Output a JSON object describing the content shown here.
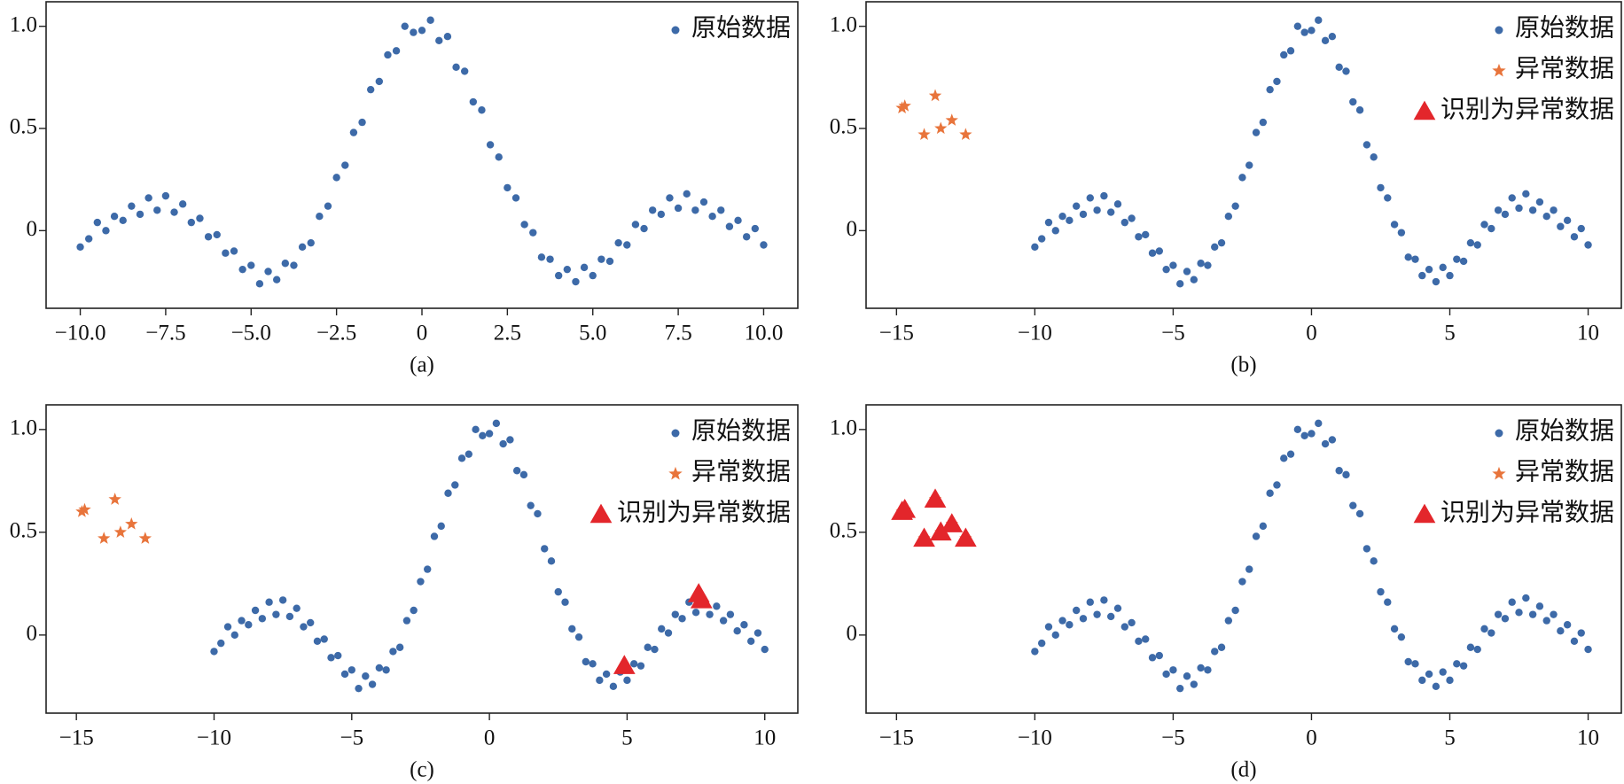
{
  "chart_data": [
    {
      "type": "scatter",
      "caption": "(a)",
      "legend": "upper right",
      "xlim": [
        -11,
        11
      ],
      "ylim": [
        -0.38,
        1.12
      ],
      "xticks": [
        {
          "value": -10,
          "label": "−10.0"
        },
        {
          "value": -7.5,
          "label": "−7.5"
        },
        {
          "value": -5,
          "label": "−5.0"
        },
        {
          "value": -2.5,
          "label": "−2.5"
        },
        0,
        2.5,
        {
          "value": 5,
          "label": "5.0"
        },
        7.5,
        {
          "value": 10,
          "label": "10.0"
        }
      ],
      "yticks": [
        0,
        0.5,
        {
          "value": 1,
          "label": "1.0"
        }
      ],
      "series": [
        {
          "name": "原始数据",
          "color": "#3d6aa8",
          "marker": "circle",
          "x": [
            -10,
            -9.75,
            -9.5,
            -9.25,
            -9,
            -8.75,
            -8.5,
            -8.25,
            -8,
            -7.75,
            -7.5,
            -7.25,
            -7,
            -6.75,
            -6.5,
            -6.25,
            -6,
            -5.75,
            -5.5,
            -5.25,
            -5,
            -4.75,
            -4.5,
            -4.25,
            -4,
            -3.75,
            -3.5,
            -3.25,
            -3,
            -2.75,
            -2.5,
            -2.25,
            -2,
            -1.75,
            -1.5,
            -1.25,
            -1,
            -0.75,
            -0.5,
            -0.25,
            0,
            0.25,
            0.5,
            0.75,
            1,
            1.25,
            1.5,
            1.75,
            2,
            2.25,
            2.5,
            2.75,
            3,
            3.25,
            3.5,
            3.75,
            4,
            4.25,
            4.5,
            4.75,
            5,
            5.25,
            5.5,
            5.75,
            6,
            6.25,
            6.5,
            6.75,
            7,
            7.25,
            7.5,
            7.75,
            8,
            8.25,
            8.5,
            8.75,
            9,
            9.25,
            9.5,
            9.75,
            10
          ],
          "values": [
            -0.08,
            -0.04,
            0.04,
            0,
            0.07,
            0.05,
            0.12,
            0.08,
            0.16,
            0.1,
            0.17,
            0.09,
            0.13,
            0.04,
            0.06,
            -0.03,
            -0.02,
            -0.11,
            -0.1,
            -0.19,
            -0.17,
            -0.26,
            -0.2,
            -0.24,
            -0.16,
            -0.17,
            -0.08,
            -0.06,
            0.07,
            0.12,
            0.26,
            0.32,
            0.48,
            0.53,
            0.69,
            0.73,
            0.86,
            0.88,
            1,
            0.97,
            0.98,
            1.03,
            0.93,
            0.95,
            0.8,
            0.78,
            0.63,
            0.59,
            0.42,
            0.36,
            0.21,
            0.16,
            0.03,
            -0.01,
            -0.13,
            -0.14,
            -0.22,
            -0.19,
            -0.25,
            -0.18,
            -0.22,
            -0.14,
            -0.15,
            -0.06,
            -0.07,
            0.03,
            0.01,
            0.1,
            0.08,
            0.16,
            0.11,
            0.18,
            0.1,
            0.14,
            0.07,
            0.1,
            0.02,
            0.05,
            -0.03,
            0.01,
            -0.07
          ]
        }
      ]
    },
    {
      "type": "scatter",
      "caption": "(b)",
      "legend": "upper right",
      "xlim": [
        -16.1,
        11.2
      ],
      "ylim": [
        -0.38,
        1.12
      ],
      "xticks": [
        {
          "value": -15,
          "label": "−15"
        },
        {
          "value": -10,
          "label": "−10"
        },
        {
          "value": -5,
          "label": "−5"
        },
        0,
        5,
        10
      ],
      "yticks": [
        0,
        0.5,
        {
          "value": 1,
          "label": "1.0"
        }
      ],
      "series": [
        {
          "name": "原始数据",
          "color": "#3d6aa8",
          "marker": "circle",
          "x": [
            -10,
            -9.75,
            -9.5,
            -9.25,
            -9,
            -8.75,
            -8.5,
            -8.25,
            -8,
            -7.75,
            -7.5,
            -7.25,
            -7,
            -6.75,
            -6.5,
            -6.25,
            -6,
            -5.75,
            -5.5,
            -5.25,
            -5,
            -4.75,
            -4.5,
            -4.25,
            -4,
            -3.75,
            -3.5,
            -3.25,
            -3,
            -2.75,
            -2.5,
            -2.25,
            -2,
            -1.75,
            -1.5,
            -1.25,
            -1,
            -0.75,
            -0.5,
            -0.25,
            0,
            0.25,
            0.5,
            0.75,
            1,
            1.25,
            1.5,
            1.75,
            2,
            2.25,
            2.5,
            2.75,
            3,
            3.25,
            3.5,
            3.75,
            4,
            4.25,
            4.5,
            4.75,
            5,
            5.25,
            5.5,
            5.75,
            6,
            6.25,
            6.5,
            6.75,
            7,
            7.25,
            7.5,
            7.75,
            8,
            8.25,
            8.5,
            8.75,
            9,
            9.25,
            9.5,
            9.75,
            10
          ],
          "values": [
            -0.08,
            -0.04,
            0.04,
            0,
            0.07,
            0.05,
            0.12,
            0.08,
            0.16,
            0.1,
            0.17,
            0.09,
            0.13,
            0.04,
            0.06,
            -0.03,
            -0.02,
            -0.11,
            -0.1,
            -0.19,
            -0.17,
            -0.26,
            -0.2,
            -0.24,
            -0.16,
            -0.17,
            -0.08,
            -0.06,
            0.07,
            0.12,
            0.26,
            0.32,
            0.48,
            0.53,
            0.69,
            0.73,
            0.86,
            0.88,
            1,
            0.97,
            0.98,
            1.03,
            0.93,
            0.95,
            0.8,
            0.78,
            0.63,
            0.59,
            0.42,
            0.36,
            0.21,
            0.16,
            0.03,
            -0.01,
            -0.13,
            -0.14,
            -0.22,
            -0.19,
            -0.25,
            -0.18,
            -0.22,
            -0.14,
            -0.15,
            -0.06,
            -0.07,
            0.03,
            0.01,
            0.1,
            0.08,
            0.16,
            0.11,
            0.18,
            0.1,
            0.14,
            0.07,
            0.1,
            0.02,
            0.05,
            -0.03,
            0.01,
            -0.07
          ]
        },
        {
          "name": "异常数据",
          "color": "#e8743b",
          "marker": "star",
          "x": [
            -14.8,
            -14.7,
            -13.6,
            -14.0,
            -13.4,
            -13.0,
            -12.5
          ],
          "values": [
            0.6,
            0.61,
            0.66,
            0.47,
            0.5,
            0.54,
            0.47
          ]
        },
        {
          "name": "识别为异常数据",
          "color": "#e3262b",
          "marker": "triangle",
          "x": [],
          "values": []
        }
      ]
    },
    {
      "type": "scatter",
      "caption": "(c)",
      "legend": "upper right",
      "xlim": [
        -16.1,
        11.2
      ],
      "ylim": [
        -0.38,
        1.12
      ],
      "xticks": [
        {
          "value": -15,
          "label": "−15"
        },
        {
          "value": -10,
          "label": "−10"
        },
        {
          "value": -5,
          "label": "−5"
        },
        0,
        5,
        10
      ],
      "yticks": [
        0,
        0.5,
        {
          "value": 1,
          "label": "1.0"
        }
      ],
      "series": [
        {
          "name": "原始数据",
          "color": "#3d6aa8",
          "marker": "circle",
          "x": [
            -10,
            -9.75,
            -9.5,
            -9.25,
            -9,
            -8.75,
            -8.5,
            -8.25,
            -8,
            -7.75,
            -7.5,
            -7.25,
            -7,
            -6.75,
            -6.5,
            -6.25,
            -6,
            -5.75,
            -5.5,
            -5.25,
            -5,
            -4.75,
            -4.5,
            -4.25,
            -4,
            -3.75,
            -3.5,
            -3.25,
            -3,
            -2.75,
            -2.5,
            -2.25,
            -2,
            -1.75,
            -1.5,
            -1.25,
            -1,
            -0.75,
            -0.5,
            -0.25,
            0,
            0.25,
            0.5,
            0.75,
            1,
            1.25,
            1.5,
            1.75,
            2,
            2.25,
            2.5,
            2.75,
            3,
            3.25,
            3.5,
            3.75,
            4,
            4.25,
            4.5,
            4.75,
            5,
            5.25,
            5.5,
            5.75,
            6,
            6.25,
            6.5,
            6.75,
            7,
            7.25,
            7.5,
            7.75,
            8,
            8.25,
            8.5,
            8.75,
            9,
            9.25,
            9.5,
            9.75,
            10
          ],
          "values": [
            -0.08,
            -0.04,
            0.04,
            0,
            0.07,
            0.05,
            0.12,
            0.08,
            0.16,
            0.1,
            0.17,
            0.09,
            0.13,
            0.04,
            0.06,
            -0.03,
            -0.02,
            -0.11,
            -0.1,
            -0.19,
            -0.17,
            -0.26,
            -0.2,
            -0.24,
            -0.16,
            -0.17,
            -0.08,
            -0.06,
            0.07,
            0.12,
            0.26,
            0.32,
            0.48,
            0.53,
            0.69,
            0.73,
            0.86,
            0.88,
            1,
            0.97,
            0.98,
            1.03,
            0.93,
            0.95,
            0.8,
            0.78,
            0.63,
            0.59,
            0.42,
            0.36,
            0.21,
            0.16,
            0.03,
            -0.01,
            -0.13,
            -0.14,
            -0.22,
            -0.19,
            -0.25,
            -0.18,
            -0.22,
            -0.14,
            -0.15,
            -0.06,
            -0.07,
            0.03,
            0.01,
            0.1,
            0.08,
            0.16,
            0.11,
            0.18,
            0.1,
            0.14,
            0.07,
            0.1,
            0.02,
            0.05,
            -0.03,
            0.01,
            -0.07
          ]
        },
        {
          "name": "异常数据",
          "color": "#e8743b",
          "marker": "star",
          "x": [
            -14.8,
            -14.7,
            -13.6,
            -14.0,
            -13.4,
            -13.0,
            -12.5
          ],
          "values": [
            0.6,
            0.61,
            0.66,
            0.47,
            0.5,
            0.54,
            0.47
          ]
        },
        {
          "name": "识别为异常数据",
          "color": "#e3262b",
          "marker": "triangle",
          "x": [
            4.9,
            7.6,
            7.7
          ],
          "values": [
            -0.15,
            0.2,
            0.17
          ]
        }
      ]
    },
    {
      "type": "scatter",
      "caption": "(d)",
      "legend": "upper right",
      "xlim": [
        -16.1,
        11.2
      ],
      "ylim": [
        -0.38,
        1.12
      ],
      "xticks": [
        {
          "value": -15,
          "label": "−15"
        },
        {
          "value": -10,
          "label": "−10"
        },
        {
          "value": -5,
          "label": "−5"
        },
        0,
        5,
        10
      ],
      "yticks": [
        0,
        0.5,
        {
          "value": 1,
          "label": "1.0"
        }
      ],
      "series": [
        {
          "name": "原始数据",
          "color": "#3d6aa8",
          "marker": "circle",
          "x": [
            -10,
            -9.75,
            -9.5,
            -9.25,
            -9,
            -8.75,
            -8.5,
            -8.25,
            -8,
            -7.75,
            -7.5,
            -7.25,
            -7,
            -6.75,
            -6.5,
            -6.25,
            -6,
            -5.75,
            -5.5,
            -5.25,
            -5,
            -4.75,
            -4.5,
            -4.25,
            -4,
            -3.75,
            -3.5,
            -3.25,
            -3,
            -2.75,
            -2.5,
            -2.25,
            -2,
            -1.75,
            -1.5,
            -1.25,
            -1,
            -0.75,
            -0.5,
            -0.25,
            0,
            0.25,
            0.5,
            0.75,
            1,
            1.25,
            1.5,
            1.75,
            2,
            2.25,
            2.5,
            2.75,
            3,
            3.25,
            3.5,
            3.75,
            4,
            4.25,
            4.5,
            4.75,
            5,
            5.25,
            5.5,
            5.75,
            6,
            6.25,
            6.5,
            6.75,
            7,
            7.25,
            7.5,
            7.75,
            8,
            8.25,
            8.5,
            8.75,
            9,
            9.25,
            9.5,
            9.75,
            10
          ],
          "values": [
            -0.08,
            -0.04,
            0.04,
            0,
            0.07,
            0.05,
            0.12,
            0.08,
            0.16,
            0.1,
            0.17,
            0.09,
            0.13,
            0.04,
            0.06,
            -0.03,
            -0.02,
            -0.11,
            -0.1,
            -0.19,
            -0.17,
            -0.26,
            -0.2,
            -0.24,
            -0.16,
            -0.17,
            -0.08,
            -0.06,
            0.07,
            0.12,
            0.26,
            0.32,
            0.48,
            0.53,
            0.69,
            0.73,
            0.86,
            0.88,
            1,
            0.97,
            0.98,
            1.03,
            0.93,
            0.95,
            0.8,
            0.78,
            0.63,
            0.59,
            0.42,
            0.36,
            0.21,
            0.16,
            0.03,
            -0.01,
            -0.13,
            -0.14,
            -0.22,
            -0.19,
            -0.25,
            -0.18,
            -0.22,
            -0.14,
            -0.15,
            -0.06,
            -0.07,
            0.03,
            0.01,
            0.1,
            0.08,
            0.16,
            0.11,
            0.18,
            0.1,
            0.14,
            0.07,
            0.1,
            0.02,
            0.05,
            -0.03,
            0.01,
            -0.07
          ]
        },
        {
          "name": "异常数据",
          "color": "#e8743b",
          "marker": "star",
          "x": [
            -14.8,
            -14.7,
            -13.6,
            -14.0,
            -13.4,
            -13.0,
            -12.5
          ],
          "values": [
            0.6,
            0.61,
            0.66,
            0.47,
            0.5,
            0.54,
            0.47
          ]
        },
        {
          "name": "识别为异常数据",
          "color": "#e3262b",
          "marker": "triangle",
          "x": [
            -14.8,
            -14.7,
            -13.6,
            -14.0,
            -13.4,
            -13.0,
            -12.5
          ],
          "values": [
            0.6,
            0.61,
            0.66,
            0.47,
            0.5,
            0.54,
            0.47
          ]
        }
      ]
    }
  ]
}
